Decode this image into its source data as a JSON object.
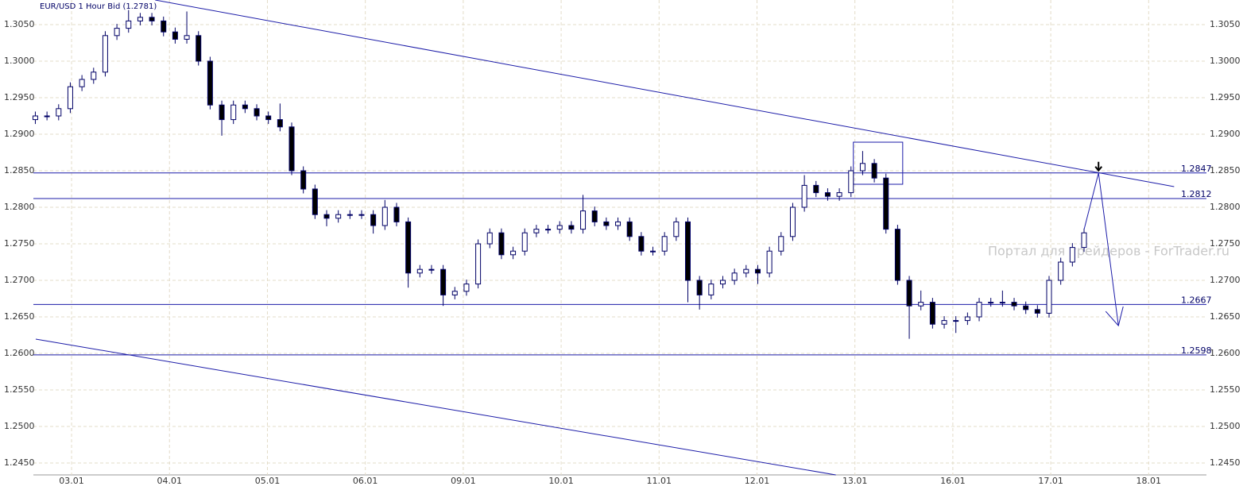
{
  "chart_data": {
    "type": "candlestick",
    "title": "EUR/USD 1 Hour Bid (1.2781)",
    "watermark": "Портал для трейдеров - ForTrader.ru",
    "xlim": [
      -0.39,
      11.59
    ],
    "xticks": [
      {
        "value": 0,
        "label": "03.01"
      },
      {
        "value": 1,
        "label": "04.01"
      },
      {
        "value": 2,
        "label": "05.01"
      },
      {
        "value": 3,
        "label": "06.01"
      },
      {
        "value": 4,
        "label": "09.01"
      },
      {
        "value": 5,
        "label": "10.01"
      },
      {
        "value": 6,
        "label": "11.01"
      },
      {
        "value": 7,
        "label": "12.01"
      },
      {
        "value": 8,
        "label": "13.01"
      },
      {
        "value": 9,
        "label": "16.01"
      },
      {
        "value": 10,
        "label": "17.01"
      },
      {
        "value": 11,
        "label": "18.01"
      }
    ],
    "ylim": [
      1.24337,
      1.30837
    ],
    "yticks": [
      {
        "value": 1.305,
        "label": "1.3050"
      },
      {
        "value": 1.3,
        "label": "1.3000"
      },
      {
        "value": 1.295,
        "label": "1.2950"
      },
      {
        "value": 1.29,
        "label": "1.2900"
      },
      {
        "value": 1.285,
        "label": "1.2850"
      },
      {
        "value": 1.28,
        "label": "1.2800"
      },
      {
        "value": 1.275,
        "label": "1.2750"
      },
      {
        "value": 1.27,
        "label": "1.2700"
      },
      {
        "value": 1.265,
        "label": "1.2650"
      },
      {
        "value": 1.26,
        "label": "1.2600"
      },
      {
        "value": 1.255,
        "label": "1.2550"
      },
      {
        "value": 1.25,
        "label": "1.2500"
      },
      {
        "value": 1.245,
        "label": "1.2450"
      }
    ],
    "grid": true,
    "up_color": "#ffffff",
    "down_color": "#000000",
    "outline_color": "#000066",
    "line_color": "#1c1ca8",
    "x": [
      -0.37,
      -0.251,
      -0.132,
      -0.013,
      0.106,
      0.225,
      0.344,
      0.463,
      0.582,
      0.701,
      0.82,
      0.939,
      1.058,
      1.177,
      1.296,
      1.415,
      1.534,
      1.653,
      1.772,
      1.891,
      2.01,
      2.129,
      2.248,
      2.367,
      2.486,
      2.605,
      2.724,
      2.843,
      2.962,
      3.081,
      3.2,
      3.319,
      3.438,
      3.557,
      3.676,
      3.795,
      3.914,
      4.033,
      4.152,
      4.271,
      4.39,
      4.509,
      4.628,
      4.747,
      4.866,
      4.985,
      5.104,
      5.223,
      5.342,
      5.461,
      5.58,
      5.699,
      5.818,
      5.937,
      6.056,
      6.175,
      6.294,
      6.413,
      6.532,
      6.651,
      6.77,
      6.889,
      7.008,
      7.127,
      7.246,
      7.365,
      7.484,
      7.603,
      7.722,
      7.841,
      7.96,
      8.079,
      8.198,
      8.317,
      8.436,
      8.555,
      8.674,
      8.793,
      8.912,
      9.031,
      9.15,
      9.269,
      9.388,
      9.507,
      9.626,
      9.745,
      9.864,
      9.983,
      10.102,
      10.221,
      10.34
    ],
    "open": [
      1.292,
      1.2925,
      1.2925,
      1.2935,
      1.2965,
      1.2975,
      1.2985,
      1.3035,
      1.3045,
      1.3055,
      1.306,
      1.3055,
      1.304,
      1.303,
      1.3035,
      1.3,
      1.294,
      1.292,
      1.294,
      1.2935,
      1.2925,
      1.292,
      1.291,
      1.285,
      1.2825,
      1.279,
      1.2785,
      1.279,
      1.279,
      1.279,
      1.2775,
      1.28,
      1.278,
      1.271,
      1.2715,
      1.2715,
      1.268,
      1.2685,
      1.2695,
      1.275,
      1.2765,
      1.2735,
      1.274,
      1.2765,
      1.277,
      1.277,
      1.2775,
      1.277,
      1.2795,
      1.278,
      1.2775,
      1.278,
      1.276,
      1.274,
      1.274,
      1.276,
      1.278,
      1.27,
      1.268,
      1.2695,
      1.27,
      1.271,
      1.2715,
      1.271,
      1.274,
      1.276,
      1.28,
      1.283,
      1.282,
      1.2815,
      1.282,
      1.285,
      1.286,
      1.284,
      1.277,
      1.27,
      1.2665,
      1.267,
      1.264,
      1.2645,
      1.2645,
      1.265,
      1.267,
      1.267,
      1.267,
      1.2665,
      1.266,
      1.2655,
      1.27,
      1.2725,
      1.2745
    ],
    "high": [
      1.2931,
      1.2931,
      1.2941,
      1.2971,
      1.2981,
      1.2991,
      1.3041,
      1.3051,
      1.307,
      1.3066,
      1.3066,
      1.3061,
      1.3046,
      1.3068,
      1.3041,
      1.3006,
      1.2946,
      1.2946,
      1.2946,
      1.2941,
      1.2931,
      1.2942,
      1.2916,
      1.2856,
      1.2831,
      1.2796,
      1.2796,
      1.2796,
      1.2796,
      1.2796,
      1.281,
      1.2806,
      1.2786,
      1.2721,
      1.2721,
      1.2721,
      1.2691,
      1.2701,
      1.2756,
      1.2771,
      1.2771,
      1.2746,
      1.2771,
      1.2776,
      1.2776,
      1.2781,
      1.2781,
      1.2817,
      1.2801,
      1.2786,
      1.2786,
      1.2786,
      1.2766,
      1.2746,
      1.2766,
      1.2786,
      1.2786,
      1.2706,
      1.2701,
      1.2706,
      1.2716,
      1.2721,
      1.2721,
      1.2746,
      1.2766,
      1.2806,
      1.2844,
      1.2836,
      1.2826,
      1.2826,
      1.2856,
      1.2877,
      1.2866,
      1.2846,
      1.2776,
      1.2706,
      1.2686,
      1.2676,
      1.2651,
      1.2651,
      1.2656,
      1.2676,
      1.2676,
      1.2686,
      1.2676,
      1.2671,
      1.2666,
      1.2706,
      1.2731,
      1.2751,
      1.2771
    ],
    "low": [
      1.2914,
      1.2919,
      1.2919,
      1.2929,
      1.2959,
      1.2969,
      1.2979,
      1.3029,
      1.3039,
      1.3049,
      1.3049,
      1.3034,
      1.3024,
      1.3024,
      1.2994,
      1.2934,
      1.2898,
      1.2914,
      1.2929,
      1.2919,
      1.2914,
      1.2904,
      1.2844,
      1.2819,
      1.2784,
      1.2774,
      1.2779,
      1.2784,
      1.2784,
      1.2764,
      1.2769,
      1.2774,
      1.269,
      1.2704,
      1.2709,
      1.2665,
      1.2674,
      1.2679,
      1.2689,
      1.2744,
      1.2729,
      1.2729,
      1.2734,
      1.2759,
      1.2764,
      1.2764,
      1.2764,
      1.2764,
      1.2774,
      1.2769,
      1.2769,
      1.2754,
      1.2734,
      1.2734,
      1.2734,
      1.2754,
      1.267,
      1.266,
      1.2674,
      1.2689,
      1.2694,
      1.2704,
      1.2695,
      1.2704,
      1.2734,
      1.2754,
      1.2794,
      1.2814,
      1.2809,
      1.2809,
      1.2814,
      1.2844,
      1.2834,
      1.2764,
      1.2694,
      1.262,
      1.2659,
      1.2634,
      1.2634,
      1.2628,
      1.2639,
      1.2644,
      1.2664,
      1.2664,
      1.2659,
      1.2654,
      1.2649,
      1.2649,
      1.2694,
      1.2719,
      1.2739
    ],
    "close": [
      1.2925,
      1.2925,
      1.2935,
      1.2965,
      1.2975,
      1.2985,
      1.3035,
      1.3045,
      1.3055,
      1.306,
      1.3055,
      1.304,
      1.303,
      1.3035,
      1.3,
      1.294,
      1.292,
      1.294,
      1.2935,
      1.2925,
      1.292,
      1.291,
      1.285,
      1.2825,
      1.279,
      1.2785,
      1.279,
      1.279,
      1.279,
      1.2775,
      1.28,
      1.278,
      1.271,
      1.2715,
      1.2715,
      1.268,
      1.2685,
      1.2695,
      1.275,
      1.2765,
      1.2735,
      1.274,
      1.2765,
      1.277,
      1.277,
      1.2775,
      1.277,
      1.2795,
      1.278,
      1.2775,
      1.278,
      1.276,
      1.274,
      1.274,
      1.276,
      1.278,
      1.27,
      1.268,
      1.2695,
      1.27,
      1.271,
      1.2715,
      1.271,
      1.274,
      1.276,
      1.28,
      1.283,
      1.282,
      1.2815,
      1.282,
      1.285,
      1.286,
      1.284,
      1.277,
      1.27,
      1.2665,
      1.267,
      1.264,
      1.2645,
      1.2645,
      1.265,
      1.267,
      1.267,
      1.267,
      1.2665,
      1.266,
      1.2655,
      1.27,
      1.2725,
      1.2745,
      1.2765
    ],
    "levels": [
      1.2847,
      1.2812,
      1.2667,
      1.2598
    ],
    "trendlines": [
      {
        "x": [
          0.854,
          11.26
        ],
        "y": [
          1.30837,
          1.28283
        ]
      },
      {
        "x": [
          -0.366,
          7.805
        ],
        "y": [
          1.26196,
          1.24337
        ]
      }
    ],
    "box": {
      "x": [
        7.984,
        8.488
      ],
      "y": [
        1.28891,
        1.28315
      ]
    },
    "forecast": {
      "x": [
        10.341,
        10.488,
        10.691
      ],
      "y": [
        1.277,
        1.2847,
        1.2638
      ]
    }
  }
}
